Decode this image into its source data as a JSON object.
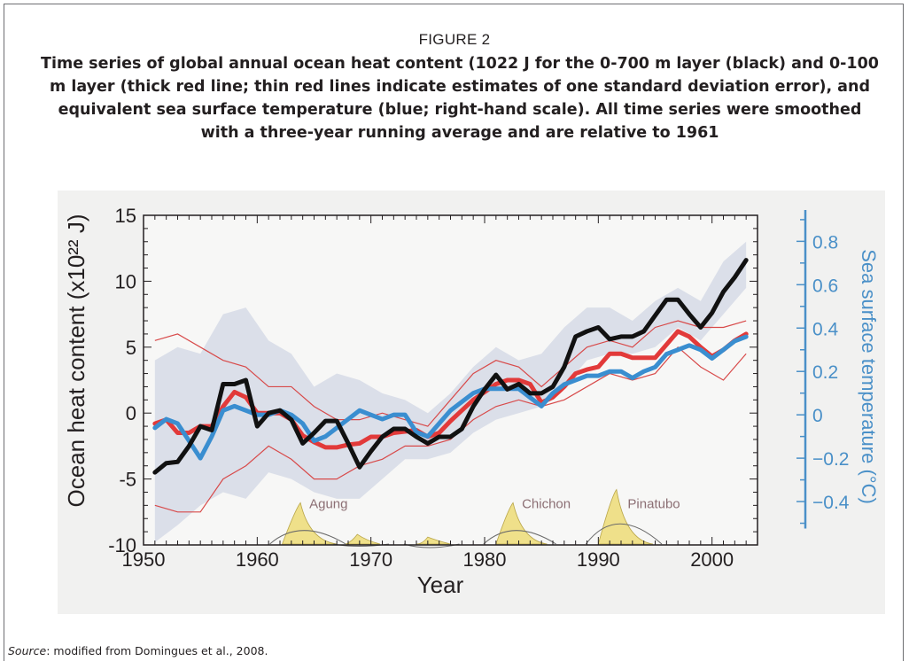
{
  "figure": {
    "label": "FIGURE 2",
    "caption": "Time series of global annual ocean heat content (1022 J for the 0-700 m layer (black) and 0-100 m layer (thick red line; thin red lines indicate estimates of one standard deviation error), and equivalent sea surface temperature (blue; right-hand scale). All time series were smoothed with a three-year running average and are relative to 1961",
    "source_prefix": "Source",
    "source_rest": ": modified from Domingues et al., 2008."
  },
  "colors": {
    "black_series": "#111111",
    "red_series": "#e23a3a",
    "red_band": "#d84a4a",
    "blue_series": "#3a8ed0",
    "grey_band": "#d6dbe6",
    "volcano_fill": "#efe08a",
    "right_axis": "#4a90c8"
  },
  "chart_data": {
    "type": "line",
    "xlabel": "Year",
    "ylabel": "Ocean heat content (x10²² J)",
    "ylabel_right": "Sea surface temperature (°C)",
    "xlim": [
      1950,
      2004
    ],
    "ylim": [
      -10,
      15
    ],
    "ylim_right": [
      -0.6,
      0.92
    ],
    "x_ticks": [
      1950,
      1960,
      1970,
      1980,
      1990,
      2000
    ],
    "y_ticks": [
      15,
      10,
      5,
      0,
      -5,
      -10
    ],
    "y_ticks_right": [
      0.8,
      0.6,
      0.4,
      0.2,
      0,
      -0.2,
      -0.4
    ],
    "y_tick_labels_right": [
      "0.8",
      "0.6",
      "0.4",
      "0.2",
      "0",
      "−0.2",
      "−0.4"
    ],
    "grid": false,
    "volcano_labels": [
      {
        "name": "Agung",
        "year": 1963.8
      },
      {
        "name": "Chichon",
        "year": 1982.5
      },
      {
        "name": "Pinatubo",
        "year": 1991.8
      }
    ],
    "series": [
      {
        "key": "black_0_700m",
        "axis": "left",
        "x": [
          1951,
          1952,
          1953,
          1954,
          1955,
          1956,
          1957,
          1958,
          1959,
          1960,
          1961,
          1962,
          1963,
          1964,
          1965,
          1966,
          1967,
          1968,
          1969,
          1970,
          1971,
          1972,
          1973,
          1974,
          1975,
          1976,
          1977,
          1978,
          1979,
          1980,
          1981,
          1982,
          1983,
          1984,
          1985,
          1986,
          1987,
          1988,
          1989,
          1990,
          1991,
          1992,
          1993,
          1994,
          1995,
          1996,
          1997,
          1998,
          1999,
          2000,
          2001,
          2002,
          2003
        ],
        "y": [
          -4.5,
          -3.8,
          -3.7,
          -2.5,
          -1.0,
          -1.3,
          2.2,
          2.2,
          2.5,
          -1.0,
          0.0,
          0.2,
          -0.5,
          -2.3,
          -1.5,
          -0.6,
          -0.6,
          -2.3,
          -4.1,
          -2.9,
          -1.8,
          -1.2,
          -1.2,
          -1.8,
          -2.3,
          -1.8,
          -1.8,
          -1.2,
          0.5,
          1.8,
          2.9,
          1.8,
          2.2,
          1.5,
          1.5,
          2.0,
          3.5,
          5.8,
          6.2,
          6.5,
          5.6,
          5.8,
          5.8,
          6.2,
          7.4,
          8.6,
          8.6,
          7.5,
          6.5,
          7.6,
          9.2,
          10.3,
          11.6
        ]
      },
      {
        "key": "red_0_100m",
        "axis": "left",
        "x": [
          1951,
          1952,
          1953,
          1954,
          1955,
          1956,
          1957,
          1958,
          1959,
          1960,
          1961,
          1962,
          1963,
          1964,
          1965,
          1966,
          1967,
          1968,
          1969,
          1970,
          1971,
          1972,
          1973,
          1974,
          1975,
          1976,
          1977,
          1978,
          1979,
          1980,
          1981,
          1982,
          1983,
          1984,
          1985,
          1986,
          1987,
          1988,
          1989,
          1990,
          1991,
          1992,
          1993,
          1994,
          1995,
          1996,
          1997,
          1998,
          1999,
          2000,
          2001,
          2002,
          2003
        ],
        "y": [
          -0.8,
          -0.5,
          -1.5,
          -1.5,
          -1.0,
          -1.0,
          0.5,
          1.6,
          1.2,
          0.0,
          0.0,
          0.0,
          -0.5,
          -1.7,
          -2.2,
          -2.6,
          -2.6,
          -2.4,
          -2.3,
          -1.8,
          -1.8,
          -1.5,
          -1.4,
          -1.3,
          -1.8,
          -1.5,
          -0.6,
          0.2,
          1.0,
          1.6,
          2.2,
          2.5,
          2.5,
          2.2,
          0.8,
          1.2,
          2.0,
          3.0,
          3.3,
          3.5,
          4.5,
          4.5,
          4.2,
          4.2,
          4.2,
          5.2,
          6.2,
          5.8,
          5.0,
          4.3,
          4.8,
          5.5,
          6.0
        ]
      },
      {
        "key": "blue_sst",
        "axis": "right",
        "x": [
          1951,
          1952,
          1953,
          1954,
          1955,
          1956,
          1957,
          1958,
          1959,
          1960,
          1961,
          1962,
          1963,
          1964,
          1965,
          1966,
          1967,
          1968,
          1969,
          1970,
          1971,
          1972,
          1973,
          1974,
          1975,
          1976,
          1977,
          1978,
          1979,
          1980,
          1981,
          1982,
          1983,
          1984,
          1985,
          1986,
          1987,
          1988,
          1989,
          1990,
          1991,
          1992,
          1993,
          1994,
          1995,
          1996,
          1997,
          1998,
          1999,
          2000,
          2001,
          2002,
          2003
        ],
        "y": [
          -0.06,
          -0.02,
          -0.04,
          -0.12,
          -0.2,
          -0.1,
          0.02,
          0.04,
          0.02,
          0.0,
          0.0,
          0.02,
          0.0,
          -0.04,
          -0.12,
          -0.1,
          -0.06,
          -0.02,
          0.02,
          0.0,
          -0.02,
          0.0,
          0.0,
          -0.08,
          -0.1,
          -0.04,
          0.02,
          0.06,
          0.1,
          0.12,
          0.12,
          0.12,
          0.12,
          0.08,
          0.04,
          0.1,
          0.14,
          0.16,
          0.18,
          0.18,
          0.2,
          0.2,
          0.17,
          0.2,
          0.22,
          0.28,
          0.3,
          0.32,
          0.3,
          0.26,
          0.3,
          0.34,
          0.36
        ]
      }
    ],
    "bands": [
      {
        "key": "grey_uncertainty",
        "axis": "left",
        "x": [
          1951,
          1953,
          1955,
          1957,
          1959,
          1961,
          1963,
          1965,
          1967,
          1969,
          1971,
          1973,
          1975,
          1977,
          1979,
          1981,
          1983,
          1985,
          1987,
          1989,
          1991,
          1993,
          1995,
          1997,
          1999,
          2001,
          2003
        ],
        "upper": [
          4.0,
          5.0,
          4.5,
          7.5,
          8.0,
          5.5,
          4.5,
          2.0,
          3.0,
          2.5,
          1.5,
          1.0,
          0.0,
          1.5,
          3.5,
          5.0,
          4.0,
          4.5,
          6.5,
          8.0,
          8.0,
          7.0,
          8.5,
          9.5,
          8.5,
          11.5,
          13.0
        ],
        "lower": [
          -9.8,
          -8.5,
          -7.0,
          -6.0,
          -6.5,
          -4.5,
          -5.0,
          -6.0,
          -6.5,
          -6.5,
          -5.0,
          -3.5,
          -3.5,
          -3.0,
          -1.5,
          -0.5,
          0.0,
          0.5,
          2.0,
          4.0,
          4.5,
          4.5,
          5.0,
          6.5,
          5.5,
          7.5,
          9.5
        ]
      },
      {
        "key": "red_thin_error",
        "axis": "left",
        "x": [
          1951,
          1953,
          1955,
          1957,
          1959,
          1961,
          1963,
          1965,
          1967,
          1969,
          1971,
          1973,
          1975,
          1977,
          1979,
          1981,
          1983,
          1985,
          1987,
          1989,
          1991,
          1993,
          1995,
          1997,
          1999,
          2001,
          2003
        ],
        "upper": [
          5.5,
          6.0,
          5.0,
          4.0,
          3.5,
          2.0,
          2.0,
          0.5,
          -0.5,
          -0.5,
          0.0,
          -0.5,
          -1.0,
          1.0,
          3.0,
          4.0,
          3.5,
          2.0,
          3.5,
          5.0,
          5.5,
          5.0,
          6.5,
          7.0,
          6.5,
          6.5,
          7.0
        ],
        "lower": [
          -7.0,
          -7.5,
          -7.5,
          -5.0,
          -4.0,
          -2.5,
          -3.5,
          -5.0,
          -5.0,
          -4.0,
          -3.5,
          -2.5,
          -2.5,
          -2.0,
          -0.5,
          0.5,
          1.0,
          0.5,
          1.0,
          2.0,
          3.0,
          2.5,
          3.0,
          5.0,
          3.5,
          2.5,
          4.5
        ]
      }
    ],
    "volcano_aerosol": {
      "axis": "left",
      "peaks": [
        {
          "year": 1963.8,
          "top": -6.8,
          "width": 3.2
        },
        {
          "year": 1968.8,
          "top": -9.2,
          "width": 2.0
        },
        {
          "year": 1975.0,
          "top": -9.4,
          "width": 2.0
        },
        {
          "year": 1982.5,
          "top": -6.8,
          "width": 3.0
        },
        {
          "year": 1991.6,
          "top": -5.8,
          "width": 3.2
        }
      ]
    }
  }
}
